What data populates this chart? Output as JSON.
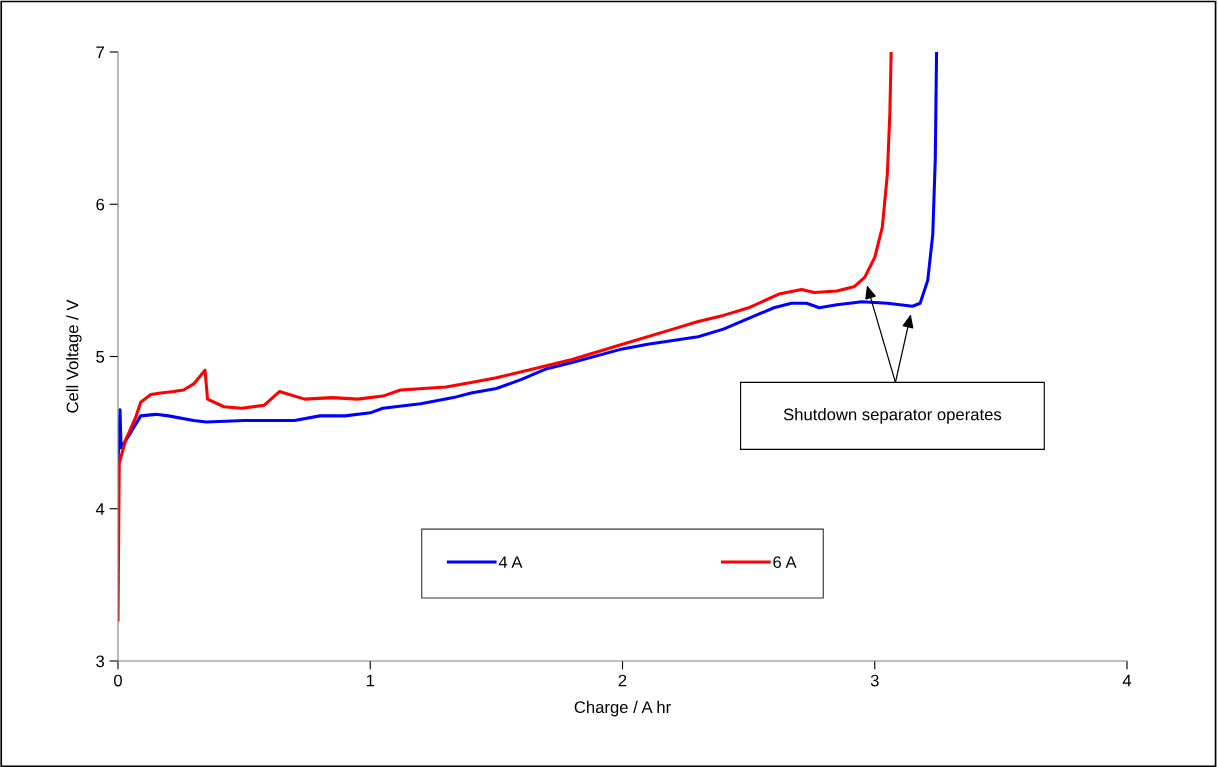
{
  "chart_data": {
    "type": "line",
    "xlabel": "Charge / A hr",
    "ylabel": "Cell Voltage / V",
    "xlim": [
      0,
      4
    ],
    "xticks": [
      0,
      1,
      2,
      3,
      4
    ],
    "ylim": [
      3,
      7
    ],
    "yticks": [
      3,
      4,
      5,
      6,
      7
    ],
    "grid": false,
    "legend": "bottom",
    "line_style": "solid",
    "marker": "none",
    "annotations": [
      "Shutdown separator operates"
    ],
    "series": [
      {
        "name": "4 A",
        "color": "#0000ff",
        "x": [
          0,
          0.008,
          0.012,
          0.05,
          0.09,
          0.15,
          0.2,
          0.3,
          0.35,
          0.5,
          0.6,
          0.7,
          0.8,
          0.9,
          1.0,
          1.05,
          1.2,
          1.33,
          1.4,
          1.5,
          1.6,
          1.7,
          1.8,
          2.0,
          2.1,
          2.3,
          2.4,
          2.5,
          2.6,
          2.67,
          2.73,
          2.78,
          2.85,
          2.95,
          3.05,
          3.15,
          3.18,
          3.21,
          3.23,
          3.24,
          3.245
        ],
        "values": [
          4.3,
          4.65,
          4.4,
          4.5,
          4.61,
          4.62,
          4.61,
          4.58,
          4.57,
          4.58,
          4.58,
          4.58,
          4.61,
          4.61,
          4.63,
          4.66,
          4.69,
          4.73,
          4.76,
          4.79,
          4.85,
          4.92,
          4.96,
          5.05,
          5.08,
          5.13,
          5.18,
          5.25,
          5.32,
          5.35,
          5.35,
          5.32,
          5.34,
          5.36,
          5.35,
          5.33,
          5.35,
          5.5,
          5.8,
          6.3,
          7.0
        ]
      },
      {
        "name": "6 A",
        "color": "#ff0000",
        "x": [
          0,
          0.005,
          0.03,
          0.07,
          0.09,
          0.13,
          0.17,
          0.22,
          0.26,
          0.3,
          0.345,
          0.355,
          0.42,
          0.49,
          0.58,
          0.64,
          0.74,
          0.85,
          0.95,
          1.05,
          1.12,
          1.3,
          1.4,
          1.5,
          1.6,
          1.8,
          2.0,
          2.2,
          2.3,
          2.4,
          2.5,
          2.62,
          2.71,
          2.76,
          2.85,
          2.92,
          2.96,
          3.0,
          3.03,
          3.05,
          3.06,
          3.065
        ],
        "values": [
          3.27,
          4.3,
          4.45,
          4.6,
          4.7,
          4.75,
          4.76,
          4.77,
          4.78,
          4.82,
          4.91,
          4.72,
          4.67,
          4.66,
          4.68,
          4.77,
          4.72,
          4.73,
          4.72,
          4.74,
          4.78,
          4.8,
          4.83,
          4.86,
          4.9,
          4.98,
          5.08,
          5.18,
          5.23,
          5.27,
          5.32,
          5.41,
          5.44,
          5.42,
          5.43,
          5.46,
          5.52,
          5.65,
          5.85,
          6.2,
          6.6,
          7.0
        ]
      }
    ]
  }
}
